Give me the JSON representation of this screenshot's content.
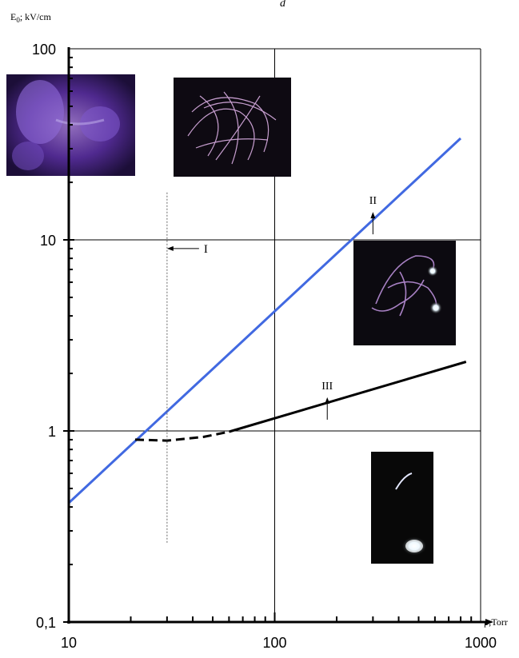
{
  "chart_data": {
    "type": "line",
    "title": "",
    "x_scale": "log",
    "y_scale": "log",
    "xlim": [
      10,
      1000
    ],
    "ylim": [
      0.1,
      100
    ],
    "xlabel": "p;Torr",
    "ylabel_main": "E",
    "ylabel_sub": "0",
    "ylabel_unit": "; kV/cm",
    "x_ticks": [
      {
        "value": 10,
        "label": "10"
      },
      {
        "value": 100,
        "label": "100"
      },
      {
        "value": 1000,
        "label": "1000"
      }
    ],
    "y_ticks": [
      {
        "value": 0.1,
        "label": "0,1"
      },
      {
        "value": 1,
        "label": "1"
      },
      {
        "value": 10,
        "label": "10"
      },
      {
        "value": 100,
        "label": "100"
      }
    ],
    "grid": true,
    "series": [
      {
        "name": "II",
        "style": "solid",
        "color": "#4169e1",
        "points": [
          [
            10,
            0.42
          ],
          [
            800,
            34
          ]
        ]
      },
      {
        "name": "III",
        "style": "dashed",
        "color": "#000000",
        "points": [
          [
            21,
            0.9
          ],
          [
            30,
            0.89
          ],
          [
            45,
            0.93
          ],
          [
            60,
            0.99
          ]
        ]
      },
      {
        "name": "III",
        "style": "solid",
        "color": "#000000",
        "points": [
          [
            60,
            0.99
          ],
          [
            850,
            2.3
          ]
        ]
      },
      {
        "name": "I",
        "style": "dotted",
        "color": "#666666",
        "points": [
          [
            30,
            0.26
          ],
          [
            30,
            18
          ]
        ]
      }
    ],
    "annotations": [
      {
        "text": "I",
        "arrow": "left",
        "at": [
          30,
          9
        ]
      },
      {
        "text": "II",
        "arrow": "up",
        "at": [
          300,
          14
        ]
      },
      {
        "text": "III",
        "arrow": "up",
        "at": [
          180,
          1.5
        ]
      }
    ],
    "insets": [
      {
        "name": "purple-glow-photo"
      },
      {
        "name": "filament-network-photo"
      },
      {
        "name": "branching-streamer-photo"
      },
      {
        "name": "single-spark-photo"
      }
    ]
  },
  "top_text": "d"
}
